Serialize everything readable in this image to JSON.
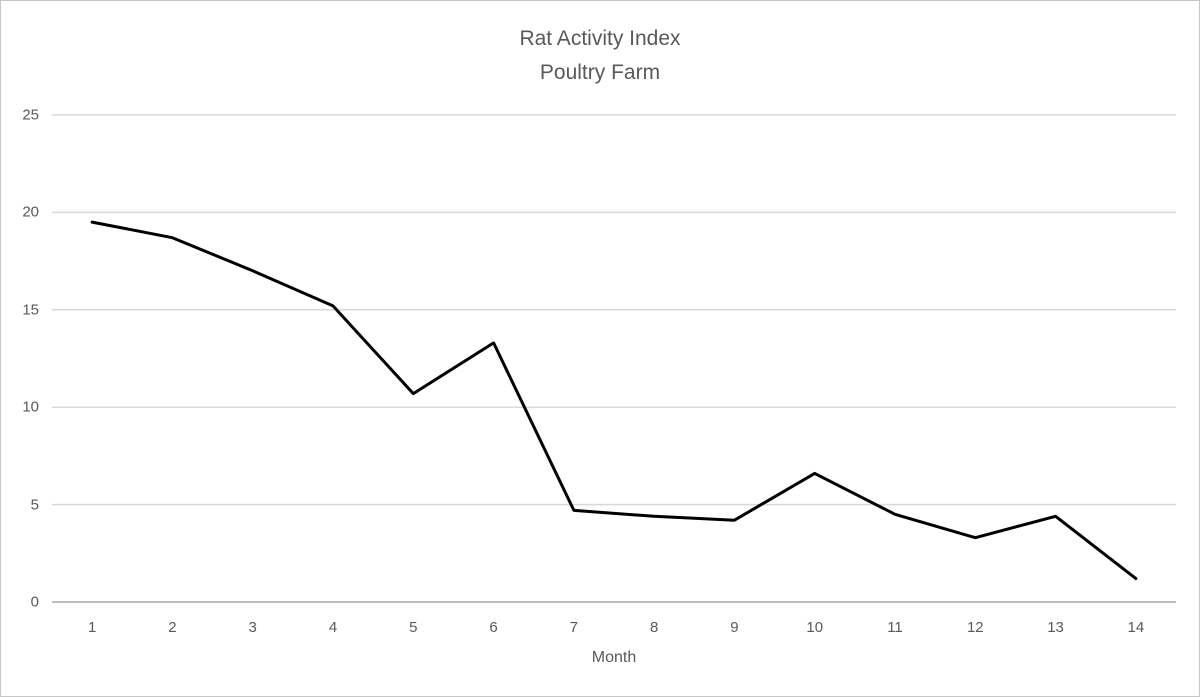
{
  "window": {
    "background": "#ffffff",
    "border_color": "#c6c6c6"
  },
  "chart_data": {
    "type": "line",
    "title": "Rat Activity Index",
    "subtitle": "Poultry Farm",
    "xlabel": "Month",
    "ylabel": "",
    "x": [
      1,
      2,
      3,
      4,
      5,
      6,
      7,
      8,
      9,
      10,
      11,
      12,
      13,
      14
    ],
    "series": [
      {
        "name": "Rat Activity Index",
        "values": [
          19.5,
          18.7,
          17.0,
          15.2,
          10.7,
          13.3,
          4.7,
          4.4,
          4.2,
          6.6,
          4.5,
          3.3,
          4.4,
          1.2
        ]
      }
    ],
    "ylim": [
      0,
      25
    ],
    "yticks": [
      0,
      5,
      10,
      15,
      20,
      25
    ],
    "grid": "horizontal",
    "legend": "none",
    "marker": "none",
    "line_color": "#000000",
    "gridline_color": "#d9d9d9",
    "axis_line_color": "#bfbfbf",
    "text_color": "#595959"
  }
}
